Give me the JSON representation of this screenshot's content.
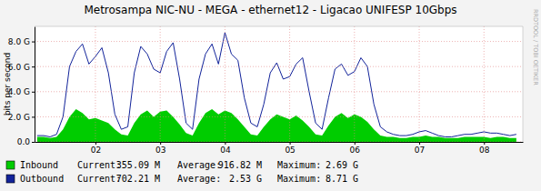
{
  "chart_data": {
    "type": "line",
    "title": "Metrosampa NIC-NU - MEGA - ethernet12 - Ligacao UNIFESP 10Gbps",
    "y_label": "bits per second",
    "watermark": "RRDTOOL / TOBI OETIKER",
    "grid": true,
    "xlim": [
      1.06,
      8.6
    ],
    "xticks": [
      {
        "value": 2,
        "label": "02"
      },
      {
        "value": 3,
        "label": "03"
      },
      {
        "value": 4,
        "label": "04"
      },
      {
        "value": 5,
        "label": "05"
      },
      {
        "value": 6,
        "label": "06"
      },
      {
        "value": 7,
        "label": "07"
      },
      {
        "value": 8,
        "label": "08"
      }
    ],
    "ylim": [
      0,
      9.2
    ],
    "yticks": [
      {
        "value": 0,
        "label": "0.0"
      },
      {
        "value": 2,
        "label": "2.0 G"
      },
      {
        "value": 4,
        "label": "4.0 G"
      },
      {
        "value": 6,
        "label": "6.0 G"
      },
      {
        "value": 8,
        "label": "8.0 G"
      }
    ],
    "stat_labels": [
      "Current:",
      "Average:",
      "Maximum:"
    ],
    "x": [
      1.1,
      1.2,
      1.3,
      1.4,
      1.5,
      1.6,
      1.7,
      1.8,
      1.9,
      2.0,
      2.1,
      2.2,
      2.3,
      2.4,
      2.5,
      2.6,
      2.7,
      2.8,
      2.9,
      3.0,
      3.1,
      3.2,
      3.3,
      3.4,
      3.5,
      3.6,
      3.7,
      3.8,
      3.9,
      4.0,
      4.1,
      4.2,
      4.3,
      4.4,
      4.5,
      4.6,
      4.7,
      4.8,
      4.9,
      5.0,
      5.1,
      5.2,
      5.3,
      5.4,
      5.5,
      5.6,
      5.7,
      5.8,
      5.9,
      6.0,
      6.1,
      6.2,
      6.3,
      6.4,
      6.5,
      6.6,
      6.7,
      6.8,
      6.9,
      7.0,
      7.1,
      7.2,
      7.3,
      7.4,
      7.5,
      7.6,
      7.7,
      7.8,
      7.9,
      8.0,
      8.1,
      8.2,
      8.3,
      8.4,
      8.5
    ],
    "series": [
      {
        "name": "Inbound",
        "type": "area",
        "color": "#00cc00",
        "stats": [
          "355.09 M",
          "916.82 M",
          "2.69 G"
        ],
        "values": [
          0.4,
          0.4,
          0.3,
          0.4,
          1.0,
          2.0,
          2.6,
          2.3,
          1.8,
          1.9,
          1.7,
          1.5,
          1.0,
          0.6,
          0.5,
          1.5,
          2.2,
          2.5,
          2.0,
          2.4,
          2.5,
          2.0,
          1.4,
          0.7,
          0.5,
          1.5,
          2.3,
          2.6,
          2.2,
          2.5,
          2.3,
          1.8,
          1.2,
          0.6,
          0.5,
          1.2,
          1.8,
          2.2,
          2.0,
          1.8,
          2.1,
          1.7,
          1.2,
          0.6,
          0.5,
          1.3,
          2.0,
          2.3,
          1.9,
          2.2,
          2.0,
          1.6,
          1.0,
          0.5,
          0.4,
          0.4,
          0.3,
          0.3,
          0.4,
          0.4,
          0.5,
          0.4,
          0.4,
          0.3,
          0.3,
          0.3,
          0.4,
          0.4,
          0.4,
          0.4,
          0.3,
          0.4,
          0.4,
          0.3,
          0.3
        ]
      },
      {
        "name": "Outbound",
        "type": "line",
        "color": "#12239a",
        "stats": [
          "702.21 M",
          "2.53 G",
          "8.71 G"
        ],
        "values": [
          0.5,
          0.5,
          0.4,
          0.6,
          2.0,
          6.0,
          7.2,
          7.8,
          6.2,
          6.8,
          7.5,
          5.5,
          2.2,
          1.0,
          1.2,
          5.5,
          7.6,
          7.0,
          5.8,
          5.5,
          7.2,
          7.9,
          5.0,
          1.5,
          1.0,
          5.0,
          7.0,
          7.8,
          6.2,
          8.7,
          7.0,
          6.5,
          3.5,
          1.5,
          1.2,
          3.0,
          5.5,
          6.3,
          5.0,
          5.2,
          6.2,
          6.7,
          4.0,
          1.5,
          1.0,
          3.5,
          5.8,
          6.2,
          5.3,
          5.6,
          6.7,
          6.0,
          3.0,
          1.2,
          0.8,
          0.6,
          0.5,
          0.5,
          0.6,
          0.8,
          0.9,
          0.7,
          0.5,
          0.4,
          0.4,
          0.5,
          0.6,
          0.6,
          0.7,
          0.8,
          0.7,
          0.7,
          0.6,
          0.5,
          0.6
        ]
      }
    ]
  }
}
